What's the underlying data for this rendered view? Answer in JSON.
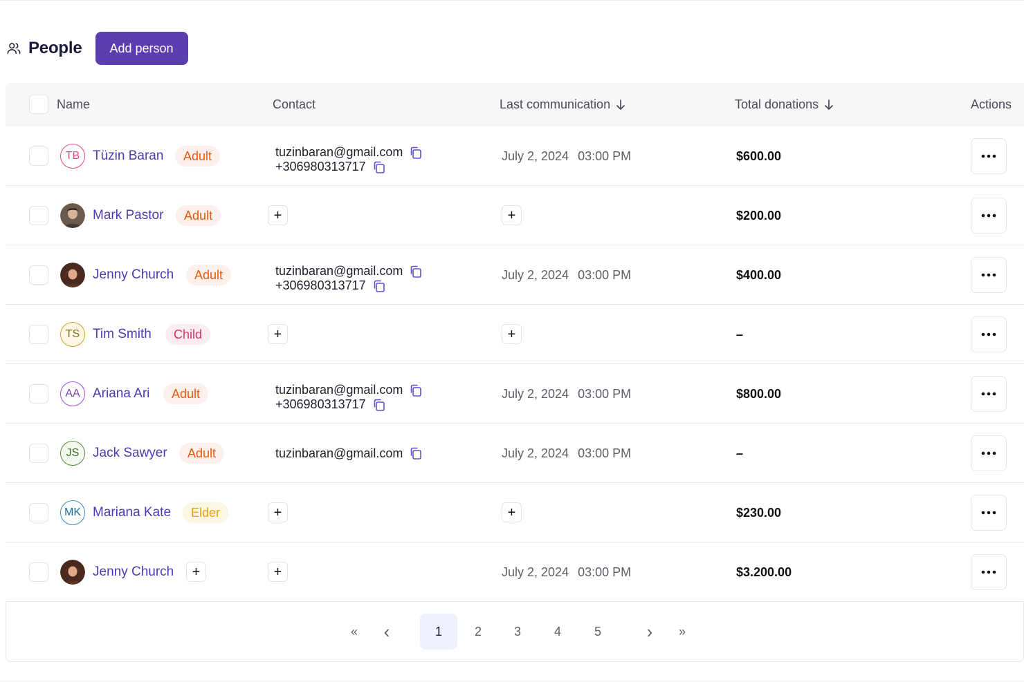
{
  "header": {
    "title": "People",
    "add_button": "Add person",
    "icon": "people-icon"
  },
  "columns": {
    "name": "Name",
    "contact": "Contact",
    "last_communication": "Last communication",
    "total_donations": "Total donations",
    "actions": "Actions"
  },
  "rows": [
    {
      "initials": "TB",
      "name": "Tüzin Baran",
      "badge": "Adult",
      "email": "tuzinbaran@gmail.com",
      "phone": "+306980313717",
      "date": "July 2, 2024",
      "time": "03:00 PM",
      "donation": "$600.00"
    },
    {
      "initials": "",
      "name": "Mark Pastor",
      "badge": "Adult",
      "email": "",
      "phone": "",
      "date": "",
      "time": "",
      "donation": "$200.00"
    },
    {
      "initials": "",
      "name": "Jenny Church",
      "badge": "Adult",
      "email": "tuzinbaran@gmail.com",
      "phone": "+306980313717",
      "date": "July 2, 2024",
      "time": "03:00 PM",
      "donation": "$400.00"
    },
    {
      "initials": "TS",
      "name": "Tim Smith",
      "badge": "Child",
      "email": "",
      "phone": "",
      "date": "",
      "time": "",
      "donation": "–"
    },
    {
      "initials": "AA",
      "name": "Ariana Ari",
      "badge": "Adult",
      "email": "tuzinbaran@gmail.com",
      "phone": "+306980313717",
      "date": "July 2, 2024",
      "time": "03:00 PM",
      "donation": "$800.00"
    },
    {
      "initials": "JS",
      "name": "Jack Sawyer",
      "badge": "Adult",
      "email": "tuzinbaran@gmail.com",
      "phone": "",
      "date": "July 2, 2024",
      "time": "03:00 PM",
      "donation": "–"
    },
    {
      "initials": "MK",
      "name": "Mariana Kate",
      "badge": "Elder",
      "email": "",
      "phone": "",
      "date": "",
      "time": "",
      "donation": "$230.00"
    },
    {
      "initials": "",
      "name": "Jenny Church",
      "badge": "",
      "email": "",
      "phone": "",
      "date": "July 2, 2024",
      "time": "03:00 PM",
      "donation": "$3.200.00"
    }
  ],
  "pagination": {
    "first": "«",
    "prev": "‹",
    "pages": [
      "1",
      "2",
      "3",
      "4",
      "5"
    ],
    "current": "1",
    "next": "›",
    "last": "»"
  },
  "colors": {
    "primary": "#5b3fb0",
    "link": "#4b3ab5",
    "adult_badge_bg": "#fdf0ec",
    "adult_badge_text": "#e8590c",
    "child_badge_bg": "#fdebf3",
    "child_badge_text": "#d6336c",
    "elder_badge_bg": "#fdf6e3",
    "elder_badge_text": "#e8a00c"
  }
}
